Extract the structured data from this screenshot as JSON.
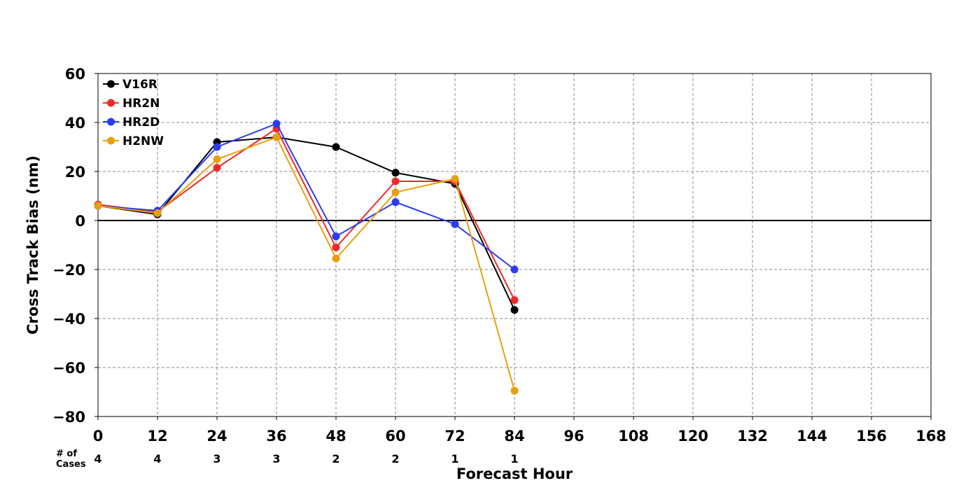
{
  "chart_data": {
    "type": "line",
    "title": "",
    "xlabel": "Forecast Hour",
    "ylabel": "Cross Track Bias (nm)",
    "xlim": [
      0,
      168
    ],
    "ylim": [
      -80,
      60
    ],
    "x_ticks": [
      0,
      12,
      24,
      36,
      48,
      60,
      72,
      84,
      96,
      108,
      120,
      132,
      144,
      156,
      168
    ],
    "y_ticks": [
      60,
      40,
      20,
      0,
      -20,
      -40,
      -60,
      -80
    ],
    "grid": true,
    "legend_position": "top-left",
    "cases_label": "# of\nCases",
    "cases": [
      {
        "x": 0,
        "n": "4"
      },
      {
        "x": 12,
        "n": "4"
      },
      {
        "x": 24,
        "n": "3"
      },
      {
        "x": 36,
        "n": "3"
      },
      {
        "x": 48,
        "n": "2"
      },
      {
        "x": 60,
        "n": "2"
      },
      {
        "x": 72,
        "n": "1"
      },
      {
        "x": 84,
        "n": "1"
      }
    ],
    "x": [
      0,
      12,
      24,
      36,
      48,
      60,
      72,
      84
    ],
    "series": [
      {
        "name": "V16R",
        "color": "#000000",
        "values": [
          6,
          2.5,
          32,
          34,
          30,
          19.5,
          15,
          -36.5
        ]
      },
      {
        "name": "HR2N",
        "color": "#ee2a2a",
        "values": [
          6.5,
          3.5,
          21.5,
          37.5,
          -11,
          16,
          16,
          -32.5
        ]
      },
      {
        "name": "HR2D",
        "color": "#2b3cf0",
        "values": [
          6,
          4,
          30,
          39.5,
          -6.5,
          7.5,
          -1.5,
          -20
        ]
      },
      {
        "name": "H2NW",
        "color": "#e8a010",
        "values": [
          6,
          3,
          25,
          34,
          -15.5,
          11.5,
          17,
          -69.5
        ]
      }
    ]
  }
}
